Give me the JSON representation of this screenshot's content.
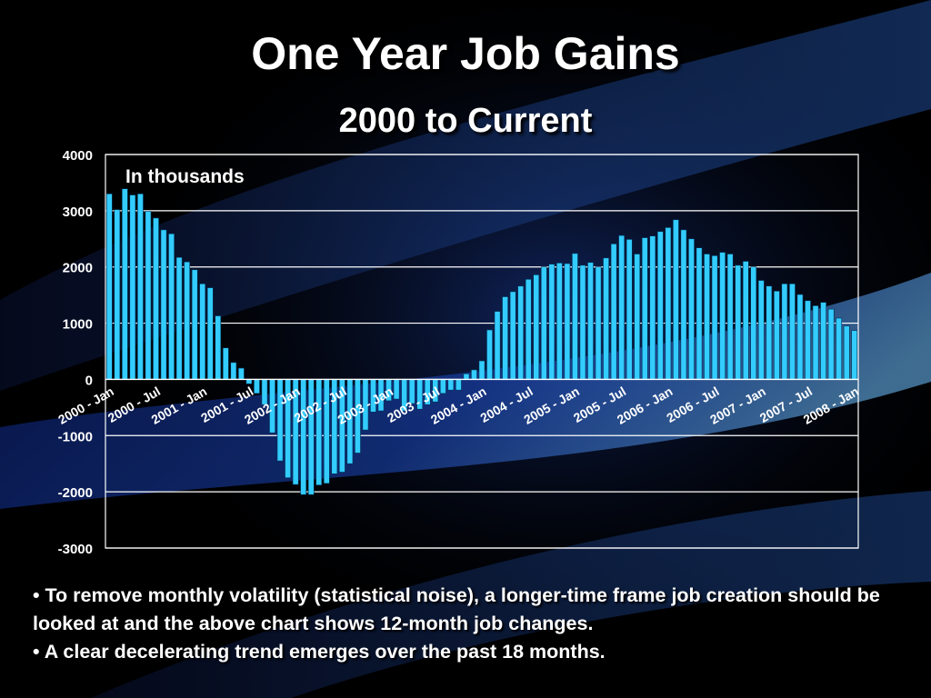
{
  "slide": {
    "title": "One Year Job Gains",
    "subtitle": "2000 to Current",
    "bullets": [
      "• To remove monthly volatility (statistical noise), a longer-time frame job creation should be looked at and the above chart shows 12-month job changes.",
      "• A clear decelerating trend emerges over the past 18 months."
    ]
  },
  "colors": {
    "background": "#000000",
    "bar_fill": "#33ccff",
    "bar_stroke": "#003355",
    "grid": "#ffffff",
    "text": "#ffffff"
  },
  "chart_data": {
    "type": "bar",
    "annotation": "In thousands",
    "xlabel": "",
    "ylabel": "",
    "ylim": [
      -3000,
      4000
    ],
    "yticks": [
      -3000,
      -2000,
      -1000,
      0,
      1000,
      2000,
      3000,
      4000
    ],
    "ytick_labels": [
      "-3000",
      "-2000",
      "-1000",
      "0",
      "1000",
      "2000",
      "3000",
      "4000"
    ],
    "grid": true,
    "legend": "none",
    "period_start": "2000 - Jan",
    "x_tick_labels": [
      {
        "index": 0,
        "label": "2000 - Jan"
      },
      {
        "index": 6,
        "label": "2000 - Jul"
      },
      {
        "index": 12,
        "label": "2001 - Jan"
      },
      {
        "index": 18,
        "label": "2001 - Jul"
      },
      {
        "index": 24,
        "label": "2002 - Jan"
      },
      {
        "index": 30,
        "label": "2002 - Jul"
      },
      {
        "index": 36,
        "label": "2003 - Jan"
      },
      {
        "index": 42,
        "label": "2003 - Jul"
      },
      {
        "index": 48,
        "label": "2004 - Jan"
      },
      {
        "index": 54,
        "label": "2004 - Jul"
      },
      {
        "index": 60,
        "label": "2005 - Jan"
      },
      {
        "index": 66,
        "label": "2005 - Jul"
      },
      {
        "index": 72,
        "label": "2006 - Jan"
      },
      {
        "index": 78,
        "label": "2006 - Jul"
      },
      {
        "index": 84,
        "label": "2007 - Jan"
      },
      {
        "index": 90,
        "label": "2007 - Jul"
      },
      {
        "index": 96,
        "label": "2008 - Jan"
      }
    ],
    "values": [
      3300,
      3020,
      3390,
      3280,
      3300,
      2990,
      2870,
      2660,
      2590,
      2170,
      2090,
      1950,
      1700,
      1630,
      1130,
      560,
      300,
      200,
      -80,
      -250,
      -450,
      -950,
      -1450,
      -1750,
      -1870,
      -2050,
      -2050,
      -1880,
      -1850,
      -1680,
      -1650,
      -1500,
      -1310,
      -900,
      -580,
      -560,
      -380,
      -350,
      -560,
      -430,
      -530,
      -450,
      -400,
      -250,
      -190,
      -190,
      100,
      170,
      330,
      880,
      1210,
      1470,
      1560,
      1660,
      1780,
      1860,
      2000,
      2050,
      2070,
      2060,
      2240,
      2030,
      2080,
      2000,
      2160,
      2410,
      2560,
      2490,
      2230,
      2520,
      2550,
      2630,
      2700,
      2840,
      2660,
      2500,
      2340,
      2230,
      2200,
      2260,
      2230,
      2030,
      2100,
      2000,
      1760,
      1660,
      1570,
      1700,
      1700,
      1510,
      1400,
      1310,
      1370,
      1250,
      1090,
      950,
      870
    ]
  }
}
